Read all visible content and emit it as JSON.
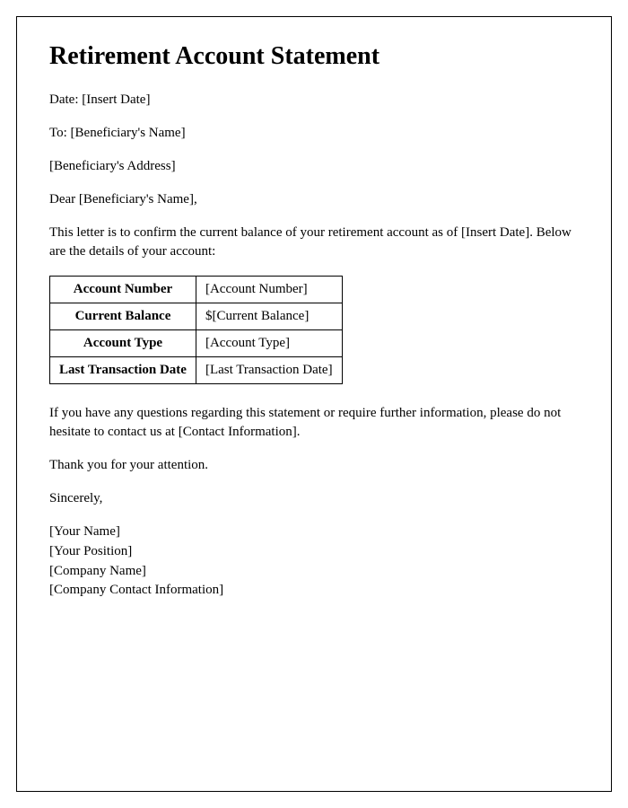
{
  "title": "Retirement Account Statement",
  "date_line": "Date: [Insert Date]",
  "to_line": "To: [Beneficiary's Name]",
  "address_line": "[Beneficiary's Address]",
  "salutation": "Dear [Beneficiary's Name],",
  "intro": "This letter is to confirm the current balance of your retirement account as of [Insert Date]. Below are the details of your account:",
  "table": {
    "rows": [
      {
        "label": "Account Number",
        "value": "[Account Number]"
      },
      {
        "label": "Current Balance",
        "value": "$[Current Balance]"
      },
      {
        "label": "Account Type",
        "value": "[Account Type]"
      },
      {
        "label": "Last Transaction Date",
        "value": "[Last Transaction Date]"
      }
    ]
  },
  "contact_para": "If you have any questions regarding this statement or require further information, please do not hesitate to contact us at [Contact Information].",
  "thanks": "Thank you for your attention.",
  "signoff": "Sincerely,",
  "signature": {
    "name": "[Your Name]",
    "position": "[Your Position]",
    "company": "[Company Name]",
    "contact": "[Company Contact Information]"
  },
  "styling": {
    "page_border_color": "#000000",
    "text_color": "#000000",
    "background_color": "#ffffff",
    "title_fontsize": 28,
    "body_fontsize": 15,
    "table_border_color": "#000000",
    "font_family": "Times New Roman"
  }
}
